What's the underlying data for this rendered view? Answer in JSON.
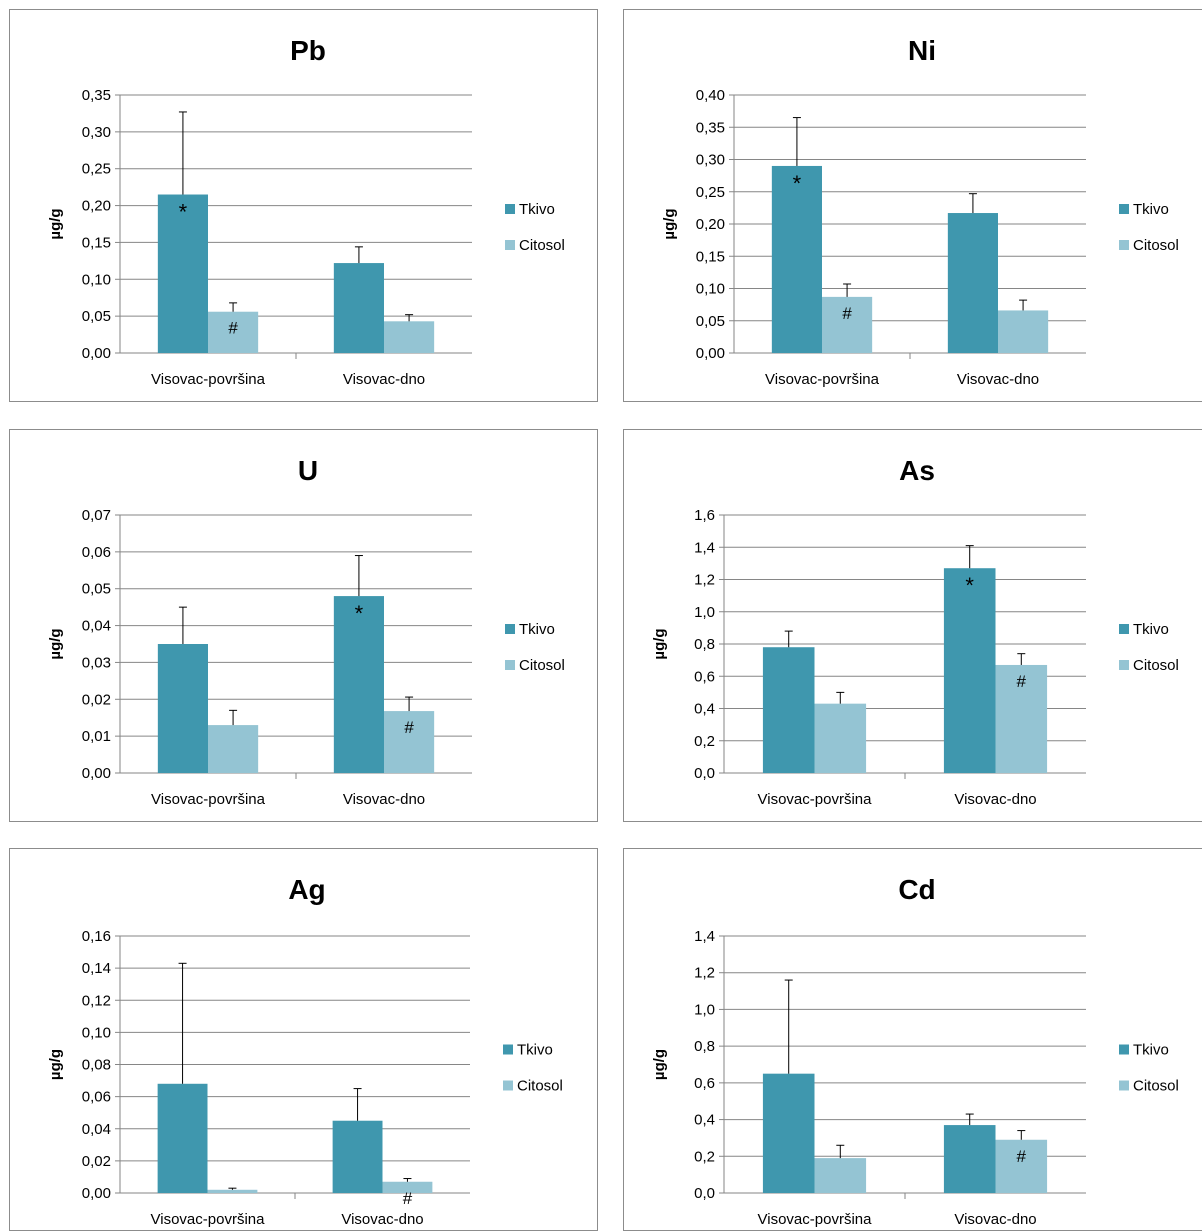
{
  "chart_data": [
    {
      "type": "bar",
      "title": "Pb",
      "ylabel": "µg/g",
      "categories": [
        "Visovac-površina",
        "Visovac-dno"
      ],
      "series": [
        {
          "name": "Tkivo",
          "values": [
            0.215,
            0.122
          ],
          "errors": [
            0.112,
            0.022
          ],
          "color": "#3f97ae"
        },
        {
          "name": "Citosol",
          "values": [
            0.056,
            0.043
          ],
          "errors": [
            0.012,
            0.009
          ],
          "color": "#94c4d3"
        }
      ],
      "annotations": [
        [
          "*",
          "#"
        ],
        [
          "",
          ""
        ]
      ],
      "ylim": [
        0,
        0.35
      ],
      "yticks": [
        "0,00",
        "0,05",
        "0,10",
        "0,15",
        "0,20",
        "0,25",
        "0,30",
        "0,35"
      ],
      "grid": true,
      "legend": "right"
    },
    {
      "type": "bar",
      "title": "Ni",
      "ylabel": "µg/g",
      "categories": [
        "Visovac-površina",
        "Visovac-dno"
      ],
      "series": [
        {
          "name": "Tkivo",
          "values": [
            0.29,
            0.217
          ],
          "errors": [
            0.075,
            0.03
          ],
          "color": "#3f97ae"
        },
        {
          "name": "Citosol",
          "values": [
            0.087,
            0.066
          ],
          "errors": [
            0.02,
            0.016
          ],
          "color": "#94c4d3"
        }
      ],
      "annotations": [
        [
          "*",
          "#"
        ],
        [
          "",
          ""
        ]
      ],
      "ylim": [
        0,
        0.4
      ],
      "yticks": [
        "0,00",
        "0,05",
        "0,10",
        "0,15",
        "0,20",
        "0,25",
        "0,30",
        "0,35",
        "0,40"
      ],
      "grid": true,
      "legend": "right"
    },
    {
      "type": "bar",
      "title": "U",
      "ylabel": "µg/g",
      "categories": [
        "Visovac-površina",
        "Visovac-dno"
      ],
      "series": [
        {
          "name": "Tkivo",
          "values": [
            0.035,
            0.048
          ],
          "errors": [
            0.01,
            0.011
          ],
          "color": "#3f97ae"
        },
        {
          "name": "Citosol",
          "values": [
            0.013,
            0.0168
          ],
          "errors": [
            0.004,
            0.0038
          ],
          "color": "#94c4d3"
        }
      ],
      "annotations": [
        [
          "",
          ""
        ],
        [
          "*",
          "#"
        ]
      ],
      "ylim": [
        0,
        0.07
      ],
      "yticks": [
        "0,00",
        "0,01",
        "0,02",
        "0,03",
        "0,04",
        "0,05",
        "0,06",
        "0,07"
      ],
      "grid": true,
      "legend": "right"
    },
    {
      "type": "bar",
      "title": "As",
      "ylabel": "µg/g",
      "categories": [
        "Visovac-površina",
        "Visovac-dno"
      ],
      "series": [
        {
          "name": "Tkivo",
          "values": [
            0.78,
            1.27
          ],
          "errors": [
            0.1,
            0.14
          ],
          "color": "#3f97ae"
        },
        {
          "name": "Citosol",
          "values": [
            0.43,
            0.67
          ],
          "errors": [
            0.07,
            0.07
          ],
          "color": "#94c4d3"
        }
      ],
      "annotations": [
        [
          "",
          ""
        ],
        [
          "*",
          "#"
        ]
      ],
      "ylim": [
        0,
        1.6
      ],
      "yticks": [
        "0,0",
        "0,2",
        "0,4",
        "0,6",
        "0,8",
        "1,0",
        "1,2",
        "1,4",
        "1,6"
      ],
      "grid": true,
      "legend": "right"
    },
    {
      "type": "bar",
      "title": "Ag",
      "ylabel": "µg/g",
      "categories": [
        "Visovac-površina",
        "Visovac-dno"
      ],
      "series": [
        {
          "name": "Tkivo",
          "values": [
            0.068,
            0.045
          ],
          "errors": [
            0.075,
            0.02
          ],
          "color": "#3f97ae"
        },
        {
          "name": "Citosol",
          "values": [
            0.002,
            0.007
          ],
          "errors": [
            0.001,
            0.002
          ],
          "color": "#94c4d3"
        }
      ],
      "annotations": [
        [
          "",
          ""
        ],
        [
          "",
          "#"
        ]
      ],
      "ylim": [
        0,
        0.16
      ],
      "yticks": [
        "0,00",
        "0,02",
        "0,04",
        "0,06",
        "0,08",
        "0,10",
        "0,12",
        "0,14",
        "0,16"
      ],
      "grid": true,
      "legend": "right"
    },
    {
      "type": "bar",
      "title": "Cd",
      "ylabel": "µg/g",
      "categories": [
        "Visovac-površina",
        "Visovac-dno"
      ],
      "series": [
        {
          "name": "Tkivo",
          "values": [
            0.65,
            0.37
          ],
          "errors": [
            0.51,
            0.06
          ],
          "color": "#3f97ae"
        },
        {
          "name": "Citosol",
          "values": [
            0.19,
            0.29
          ],
          "errors": [
            0.07,
            0.05
          ],
          "color": "#94c4d3"
        }
      ],
      "annotations": [
        [
          "",
          ""
        ],
        [
          "",
          "#"
        ]
      ],
      "ylim": [
        0,
        1.4
      ],
      "yticks": [
        "0,0",
        "0,2",
        "0,4",
        "0,6",
        "0,8",
        "1,0",
        "1,2",
        "1,4"
      ],
      "grid": true,
      "legend": "right"
    }
  ]
}
